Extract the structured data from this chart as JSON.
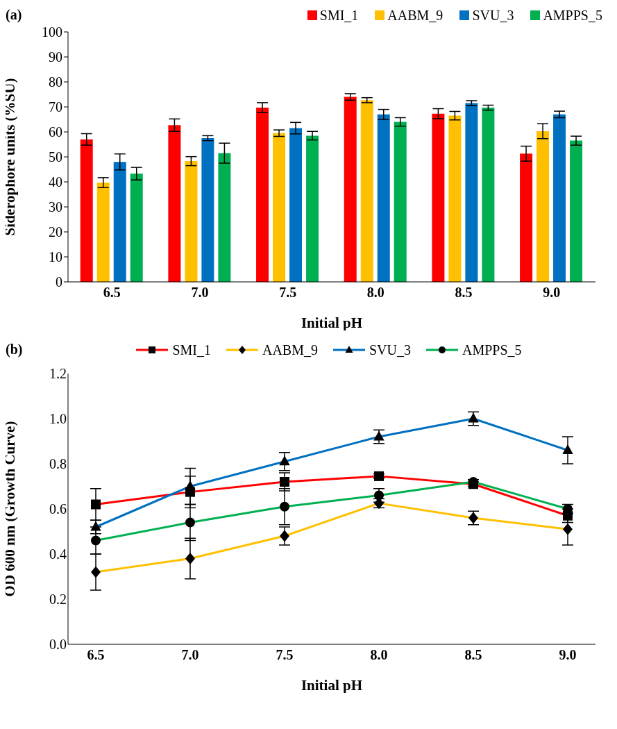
{
  "chart_data": [
    {
      "type": "bar",
      "annotations": [
        "(a)"
      ],
      "xlabel": "Initial pH",
      "ylabel": "Siderophore units (%SU)",
      "categories": [
        "6.5",
        "7.0",
        "7.5",
        "8.0",
        "8.5",
        "9.0"
      ],
      "ylim": [
        0,
        100
      ],
      "yticks": [
        0,
        10,
        20,
        30,
        40,
        50,
        60,
        70,
        80,
        90,
        100
      ],
      "legend": "top right",
      "series": [
        {
          "name": "SMI_1",
          "color": "#ff0000",
          "values": [
            57,
            62.7,
            69.7,
            74,
            67.3,
            51.3
          ],
          "errors": [
            2.3,
            2.5,
            2,
            1.3,
            2,
            3
          ]
        },
        {
          "name": "AABM_9",
          "color": "#ffc000",
          "values": [
            39.7,
            48.3,
            59.5,
            72.7,
            66.5,
            60.3
          ],
          "errors": [
            2,
            1.8,
            1.3,
            1,
            1.7,
            3
          ]
        },
        {
          "name": "SVU_3",
          "color": "#0070c0",
          "values": [
            48,
            57.5,
            61.5,
            67,
            71.5,
            67
          ],
          "errors": [
            3.2,
            1,
            2.3,
            2,
            1,
            1.3
          ]
        },
        {
          "name": "AMPPS_5",
          "color": "#00b050",
          "values": [
            43.3,
            51.5,
            58.5,
            64,
            69.7,
            56.5
          ],
          "errors": [
            2.5,
            4,
            1.7,
            1.7,
            1,
            1.8
          ]
        }
      ]
    },
    {
      "type": "line",
      "annotations": [
        "(b)"
      ],
      "xlabel": "Initial pH",
      "ylabel": "OD 600 nm (Growth Curve)",
      "categories": [
        "6.5",
        "7.0",
        "7.5",
        "8.0",
        "8.5",
        "9.0"
      ],
      "ylim": [
        0,
        1.2
      ],
      "yticks": [
        {
          "value": 0,
          "label": "0.0"
        },
        0.2,
        0.4,
        0.6,
        0.8,
        {
          "value": 1,
          "label": "1.0"
        },
        1.2
      ],
      "legend": "top",
      "line_style": "solid",
      "series": [
        {
          "name": "SMI_1",
          "color": "#ff0000",
          "marker": "square",
          "values": [
            0.62,
            0.675,
            0.72,
            0.745,
            0.71,
            0.57
          ],
          "errors": [
            0.07,
            0.07,
            0.04,
            0.01,
            0.01,
            0.03
          ]
        },
        {
          "name": "AABM_9",
          "color": "#ffc000",
          "marker": "diamond",
          "values": [
            0.32,
            0.38,
            0.48,
            0.625,
            0.56,
            0.51
          ],
          "errors": [
            0.08,
            0.09,
            0.04,
            0.02,
            0.03,
            0.07
          ]
        },
        {
          "name": "SVU_3",
          "color": "#0070c0",
          "marker": "triangle",
          "values": [
            0.52,
            0.7,
            0.81,
            0.92,
            1.0,
            0.86
          ],
          "errors": [
            0.03,
            0.08,
            0.04,
            0.03,
            0.03,
            0.06
          ]
        },
        {
          "name": "AMPPS_5",
          "color": "#00b050",
          "marker": "circle",
          "values": [
            0.46,
            0.54,
            0.61,
            0.66,
            0.72,
            0.6
          ],
          "errors": [
            0.06,
            0.08,
            0.08,
            0.03,
            0.01,
            0.02
          ]
        }
      ]
    }
  ]
}
